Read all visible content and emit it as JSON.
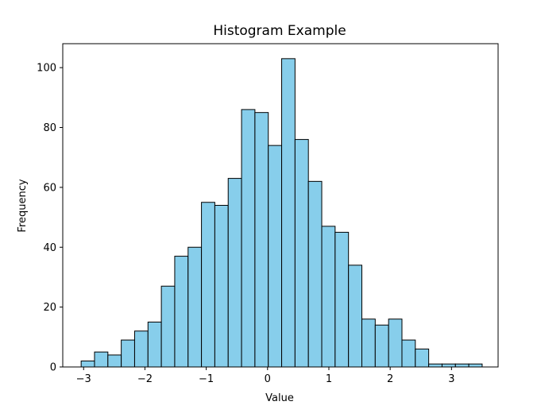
{
  "chart_data": {
    "type": "histogram",
    "title": "Histogram Example",
    "xlabel": "Value",
    "ylabel": "Frequency",
    "xlim": [
      -3.34,
      3.76
    ],
    "ylim": [
      0,
      108
    ],
    "xticks": [
      -3,
      -2,
      -1,
      0,
      1,
      2,
      3
    ],
    "yticks": [
      0,
      20,
      40,
      60,
      80,
      100
    ],
    "xtick_labels": [
      "−3",
      "−2",
      "−1",
      "0",
      "1",
      "2",
      "3"
    ],
    "ytick_labels": [
      "0",
      "20",
      "40",
      "60",
      "80",
      "100"
    ],
    "bin_edges": [
      -3.04,
      -2.822,
      -2.604,
      -2.386,
      -2.168,
      -1.95,
      -1.732,
      -1.514,
      -1.296,
      -1.078,
      -0.86,
      -0.642,
      -0.424,
      -0.206,
      0.012,
      0.23,
      0.448,
      0.666,
      0.884,
      1.102,
      1.32,
      1.538,
      1.756,
      1.974,
      2.192,
      2.41,
      2.628,
      2.846,
      3.064,
      3.282,
      3.5
    ],
    "counts": [
      2,
      5,
      4,
      9,
      12,
      15,
      27,
      37,
      40,
      55,
      54,
      63,
      86,
      85,
      74,
      103,
      76,
      62,
      47,
      45,
      34,
      16,
      14,
      16,
      9,
      6,
      1,
      1,
      1,
      1
    ],
    "bar_color": "#87ceeb",
    "edge_color": "#000000",
    "grid": false
  }
}
